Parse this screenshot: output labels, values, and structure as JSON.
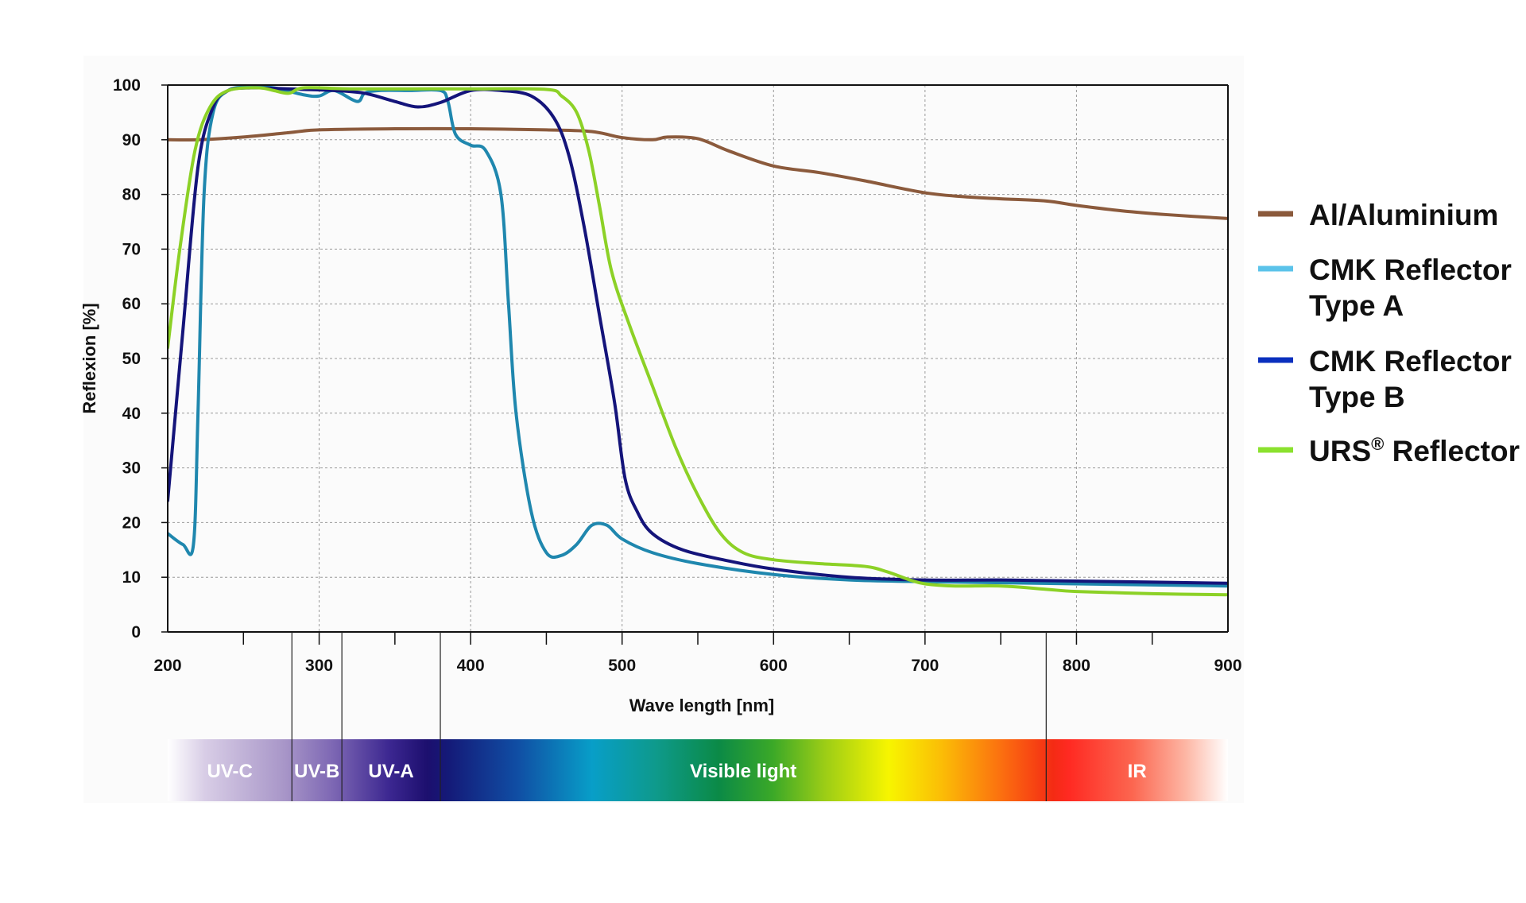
{
  "chart_data": {
    "type": "line",
    "xlabel": "Wave length [nm]",
    "ylabel": "Reflexion [%]",
    "xlim": [
      200,
      900
    ],
    "ylim": [
      0,
      100
    ],
    "x_ticks": [
      "200",
      "300",
      "400",
      "500",
      "600",
      "700",
      "800",
      "900"
    ],
    "y_ticks": [
      "0",
      "10",
      "20",
      "30",
      "40",
      "50",
      "60",
      "70",
      "80",
      "90",
      "100"
    ],
    "grid": true,
    "legend_position": "right",
    "series": [
      {
        "name": "Al/Aluminium",
        "color": "#8B5A3C",
        "points": [
          [
            200,
            90
          ],
          [
            220,
            90
          ],
          [
            250,
            90.5
          ],
          [
            280,
            91.3
          ],
          [
            300,
            91.8
          ],
          [
            350,
            92
          ],
          [
            400,
            92
          ],
          [
            450,
            91.8
          ],
          [
            480,
            91.5
          ],
          [
            500,
            90.4
          ],
          [
            520,
            90
          ],
          [
            530,
            90.5
          ],
          [
            550,
            90.2
          ],
          [
            570,
            88
          ],
          [
            600,
            85.2
          ],
          [
            630,
            84
          ],
          [
            660,
            82.5
          ],
          [
            700,
            80.3
          ],
          [
            730,
            79.5
          ],
          [
            750,
            79.2
          ],
          [
            780,
            78.8
          ],
          [
            800,
            78
          ],
          [
            830,
            77
          ],
          [
            860,
            76.3
          ],
          [
            900,
            75.6
          ]
        ]
      },
      {
        "name": "CMK Reflector Type A",
        "color": "#1F87AE",
        "points": [
          [
            200,
            18
          ],
          [
            210,
            16
          ],
          [
            217,
            16
          ],
          [
            220,
            40
          ],
          [
            224,
            80
          ],
          [
            230,
            95
          ],
          [
            240,
            99
          ],
          [
            255,
            99.6
          ],
          [
            270,
            99.5
          ],
          [
            290,
            98.2
          ],
          [
            300,
            98
          ],
          [
            310,
            99
          ],
          [
            325,
            97
          ],
          [
            330,
            98.5
          ],
          [
            340,
            99
          ],
          [
            360,
            99
          ],
          [
            380,
            99
          ],
          [
            385,
            97
          ],
          [
            390,
            91
          ],
          [
            400,
            89
          ],
          [
            410,
            88
          ],
          [
            420,
            80
          ],
          [
            425,
            60
          ],
          [
            430,
            40
          ],
          [
            440,
            22
          ],
          [
            450,
            14.5
          ],
          [
            460,
            14
          ],
          [
            470,
            16
          ],
          [
            480,
            19.5
          ],
          [
            490,
            19.5
          ],
          [
            500,
            17
          ],
          [
            520,
            14.5
          ],
          [
            550,
            12.5
          ],
          [
            600,
            10.5
          ],
          [
            650,
            9.5
          ],
          [
            700,
            9.2
          ],
          [
            800,
            8.8
          ],
          [
            900,
            8.4
          ]
        ]
      },
      {
        "name": "CMK Reflector Type B",
        "color": "#14147A",
        "points": [
          [
            200,
            24
          ],
          [
            210,
            55
          ],
          [
            220,
            85
          ],
          [
            230,
            96
          ],
          [
            240,
            99
          ],
          [
            255,
            99.5
          ],
          [
            270,
            99.4
          ],
          [
            290,
            99.2
          ],
          [
            310,
            99
          ],
          [
            330,
            98.5
          ],
          [
            350,
            97
          ],
          [
            365,
            96
          ],
          [
            380,
            96.8
          ],
          [
            400,
            99
          ],
          [
            420,
            99
          ],
          [
            440,
            98
          ],
          [
            455,
            94
          ],
          [
            465,
            87
          ],
          [
            475,
            74
          ],
          [
            485,
            58
          ],
          [
            495,
            42
          ],
          [
            502,
            28
          ],
          [
            510,
            22
          ],
          [
            520,
            18
          ],
          [
            540,
            15
          ],
          [
            570,
            13
          ],
          [
            600,
            11.5
          ],
          [
            650,
            10
          ],
          [
            700,
            9.5
          ],
          [
            750,
            9.5
          ],
          [
            800,
            9.3
          ],
          [
            900,
            8.9
          ]
        ]
      },
      {
        "name": "URS® Reflector",
        "color": "#8CD126",
        "points": [
          [
            200,
            52
          ],
          [
            208,
            70
          ],
          [
            218,
            88
          ],
          [
            228,
            96
          ],
          [
            240,
            99
          ],
          [
            260,
            99.5
          ],
          [
            270,
            99
          ],
          [
            280,
            98.5
          ],
          [
            290,
            99.5
          ],
          [
            320,
            99.3
          ],
          [
            360,
            99.3
          ],
          [
            400,
            99.3
          ],
          [
            450,
            99.2
          ],
          [
            460,
            98
          ],
          [
            470,
            95
          ],
          [
            478,
            88
          ],
          [
            485,
            78
          ],
          [
            493,
            66
          ],
          [
            505,
            56
          ],
          [
            520,
            45
          ],
          [
            535,
            34
          ],
          [
            550,
            25
          ],
          [
            565,
            18
          ],
          [
            580,
            14.5
          ],
          [
            600,
            13.2
          ],
          [
            630,
            12.5
          ],
          [
            660,
            12
          ],
          [
            675,
            11
          ],
          [
            690,
            9.5
          ],
          [
            700,
            8.8
          ],
          [
            720,
            8.4
          ],
          [
            750,
            8.4
          ],
          [
            780,
            7.8
          ],
          [
            800,
            7.4
          ],
          [
            850,
            7
          ],
          [
            900,
            6.8
          ]
        ]
      }
    ],
    "spectrum_bands": [
      {
        "label": "UV-C",
        "from": 200,
        "to": 282
      },
      {
        "label": "UV-B",
        "from": 282,
        "to": 315
      },
      {
        "label": "UV-A",
        "from": 315,
        "to": 380
      },
      {
        "label": "Visible light",
        "from": 380,
        "to": 780
      },
      {
        "label": "IR",
        "from": 780,
        "to": 900
      }
    ]
  },
  "legend": {
    "al_label": "Al/Aluminium",
    "typeA_line1": "CMK Reflector",
    "typeA_line2": "Type A",
    "typeB_line1": "CMK Reflector",
    "typeB_line2": "Type B",
    "urs_main": "URS",
    "urs_sup": "®",
    "urs_rest": " Reflector",
    "colors": {
      "al": "#8B5A3C",
      "typeA": "#5BC3EA",
      "typeB": "#0A2FBE",
      "urs": "#8BE12E"
    }
  }
}
